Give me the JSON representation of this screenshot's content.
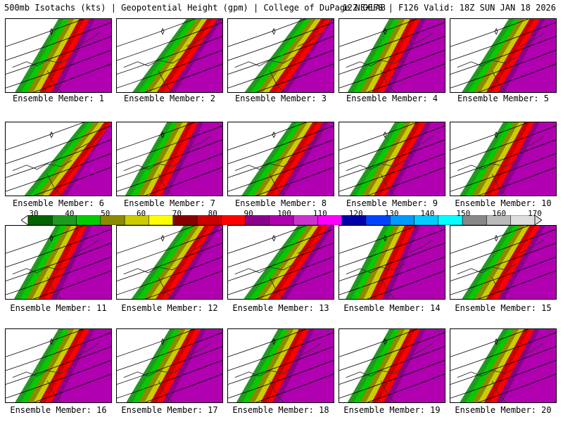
{
  "header": {
    "left": "500mb Isotachs (kts) | Geopotential Height (gpm) | College of DuPage NEXLAB",
    "right": "12Z GEFS | F126 Valid: 18Z SUN JAN 18 2026"
  },
  "colorbar": {
    "labels": [
      "30",
      "40",
      "50",
      "60",
      "70",
      "80",
      "90",
      "100",
      "110",
      "120",
      "130",
      "140",
      "150",
      "160",
      "170"
    ],
    "colors": [
      "#006400",
      "#1e9b1e",
      "#00cc00",
      "#8b8b00",
      "#cccc00",
      "#ffff00",
      "#8b0000",
      "#cc0000",
      "#ff0000",
      "#8b008b",
      "#b000b0",
      "#cc33cc",
      "#ff00ff",
      "#0000aa",
      "#0044ff",
      "#0099ff",
      "#00ccff",
      "#00ffff",
      "#888888",
      "#bbbbbb",
      "#dddddd"
    ]
  },
  "members": [
    {
      "label": "Ensemble Member: 1",
      "intensity": 0.7,
      "jet_angle": 0.55
    },
    {
      "label": "Ensemble Member: 2",
      "intensity": 0.6,
      "jet_angle": 0.25
    },
    {
      "label": "Ensemble Member: 3",
      "intensity": 0.55,
      "jet_angle": 0.2
    },
    {
      "label": "Ensemble Member: 4",
      "intensity": 0.75,
      "jet_angle": 0.6
    },
    {
      "label": "Ensemble Member: 5",
      "intensity": 0.8,
      "jet_angle": 0.45
    },
    {
      "label": "Ensemble Member: 6",
      "intensity": 0.6,
      "jet_angle": 0.1
    },
    {
      "label": "Ensemble Member: 7",
      "intensity": 0.65,
      "jet_angle": 0.6
    },
    {
      "label": "Ensemble Member: 8",
      "intensity": 0.55,
      "jet_angle": 0.35
    },
    {
      "label": "Ensemble Member: 9",
      "intensity": 0.7,
      "jet_angle": 0.5
    },
    {
      "label": "Ensemble Member: 10",
      "intensity": 0.6,
      "jet_angle": 0.55
    },
    {
      "label": "Ensemble Member: 11",
      "intensity": 0.75,
      "jet_angle": 0.6
    },
    {
      "label": "Ensemble Member: 12",
      "intensity": 0.5,
      "jet_angle": 0.3
    },
    {
      "label": "Ensemble Member: 13",
      "intensity": 0.5,
      "jet_angle": 0.25
    },
    {
      "label": "Ensemble Member: 14",
      "intensity": 0.85,
      "jet_angle": 0.7
    },
    {
      "label": "Ensemble Member: 15",
      "intensity": 0.6,
      "jet_angle": 0.45
    },
    {
      "label": "Ensemble Member: 16",
      "intensity": 0.75,
      "jet_angle": 0.55
    },
    {
      "label": "Ensemble Member: 17",
      "intensity": 0.7,
      "jet_angle": 0.55
    },
    {
      "label": "Ensemble Member: 18",
      "intensity": 0.7,
      "jet_angle": 0.6
    },
    {
      "label": "Ensemble Member: 19",
      "intensity": 0.7,
      "jet_angle": 0.6
    },
    {
      "label": "Ensemble Member: 20",
      "intensity": 0.7,
      "jet_angle": 0.55
    }
  ]
}
